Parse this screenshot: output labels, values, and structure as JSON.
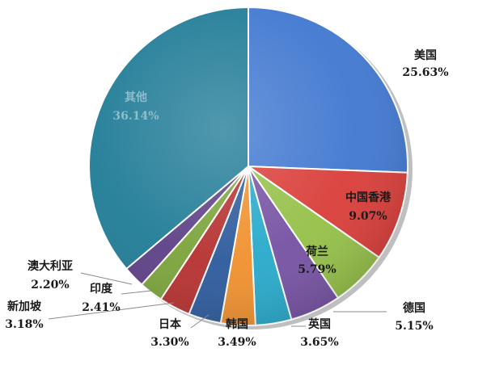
{
  "chart_data": {
    "type": "pie",
    "title": "",
    "slices": [
      {
        "name": "美国",
        "value": 25.63,
        "label": "25.63%",
        "color": "#3f77d0"
      },
      {
        "name": "中国香港",
        "value": 9.07,
        "label": "9.07%",
        "color": "#d93c38"
      },
      {
        "name": "荷兰",
        "value": 5.79,
        "label": "5.79%",
        "color": "#94c047"
      },
      {
        "name": "德国",
        "value": 5.15,
        "label": "5.15%",
        "color": "#7651a3"
      },
      {
        "name": "英国",
        "value": 3.65,
        "label": "3.65%",
        "color": "#27a9cb"
      },
      {
        "name": "韩国",
        "value": 3.49,
        "label": "3.49%",
        "color": "#f0902e"
      },
      {
        "name": "日本",
        "value": 3.3,
        "label": "3.30%",
        "color": "#2c5a9c"
      },
      {
        "name": "新加坡",
        "value": 3.18,
        "label": "3.18%",
        "color": "#b5302f"
      },
      {
        "name": "印度",
        "value": 2.41,
        "label": "2.41%",
        "color": "#7aa33a"
      },
      {
        "name": "澳大利亚",
        "value": 2.2,
        "label": "2.20%",
        "color": "#5c3f86"
      },
      {
        "name": "其他",
        "value": 36.14,
        "label": "36.14%",
        "color": "#1f7b96"
      }
    ]
  }
}
